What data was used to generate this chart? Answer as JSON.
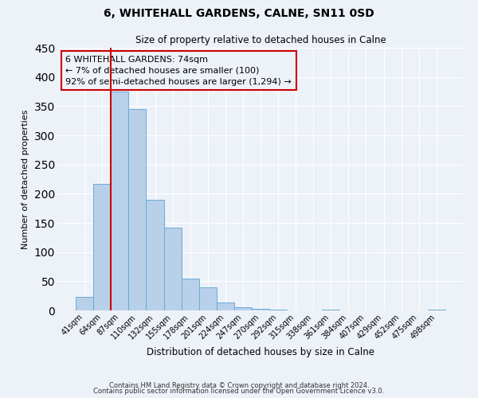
{
  "title": "6, WHITEHALL GARDENS, CALNE, SN11 0SD",
  "subtitle": "Size of property relative to detached houses in Calne",
  "xlabel": "Distribution of detached houses by size in Calne",
  "ylabel": "Number of detached properties",
  "bar_labels": [
    "41sqm",
    "64sqm",
    "87sqm",
    "110sqm",
    "132sqm",
    "155sqm",
    "178sqm",
    "201sqm",
    "224sqm",
    "247sqm",
    "270sqm",
    "292sqm",
    "315sqm",
    "338sqm",
    "361sqm",
    "384sqm",
    "407sqm",
    "429sqm",
    "452sqm",
    "475sqm",
    "498sqm"
  ],
  "bar_heights": [
    23,
    217,
    375,
    345,
    190,
    142,
    55,
    40,
    13,
    6,
    3,
    1,
    0,
    0,
    2,
    0,
    0,
    0,
    0,
    0,
    2
  ],
  "bar_color": "#b8d0ea",
  "bar_edge_color": "#6aaad4",
  "vline_x": 1.5,
  "vline_color": "#cc0000",
  "annotation_text_line1": "6 WHITEHALL GARDENS: 74sqm",
  "annotation_text_line2": "← 7% of detached houses are smaller (100)",
  "annotation_text_line3": "92% of semi-detached houses are larger (1,294) →",
  "annotation_box_edge_color": "#cc0000",
  "footer_line1": "Contains HM Land Registry data © Crown copyright and database right 2024.",
  "footer_line2": "Contains public sector information licensed under the Open Government Licence v3.0.",
  "bg_color": "#edf2f9",
  "grid_color": "#ffffff",
  "ylim": [
    0,
    450
  ],
  "title_fontsize": 10,
  "subtitle_fontsize": 8.5,
  "ylabel_fontsize": 8,
  "xlabel_fontsize": 8.5,
  "tick_fontsize": 7,
  "footer_fontsize": 6,
  "annot_fontsize": 8
}
